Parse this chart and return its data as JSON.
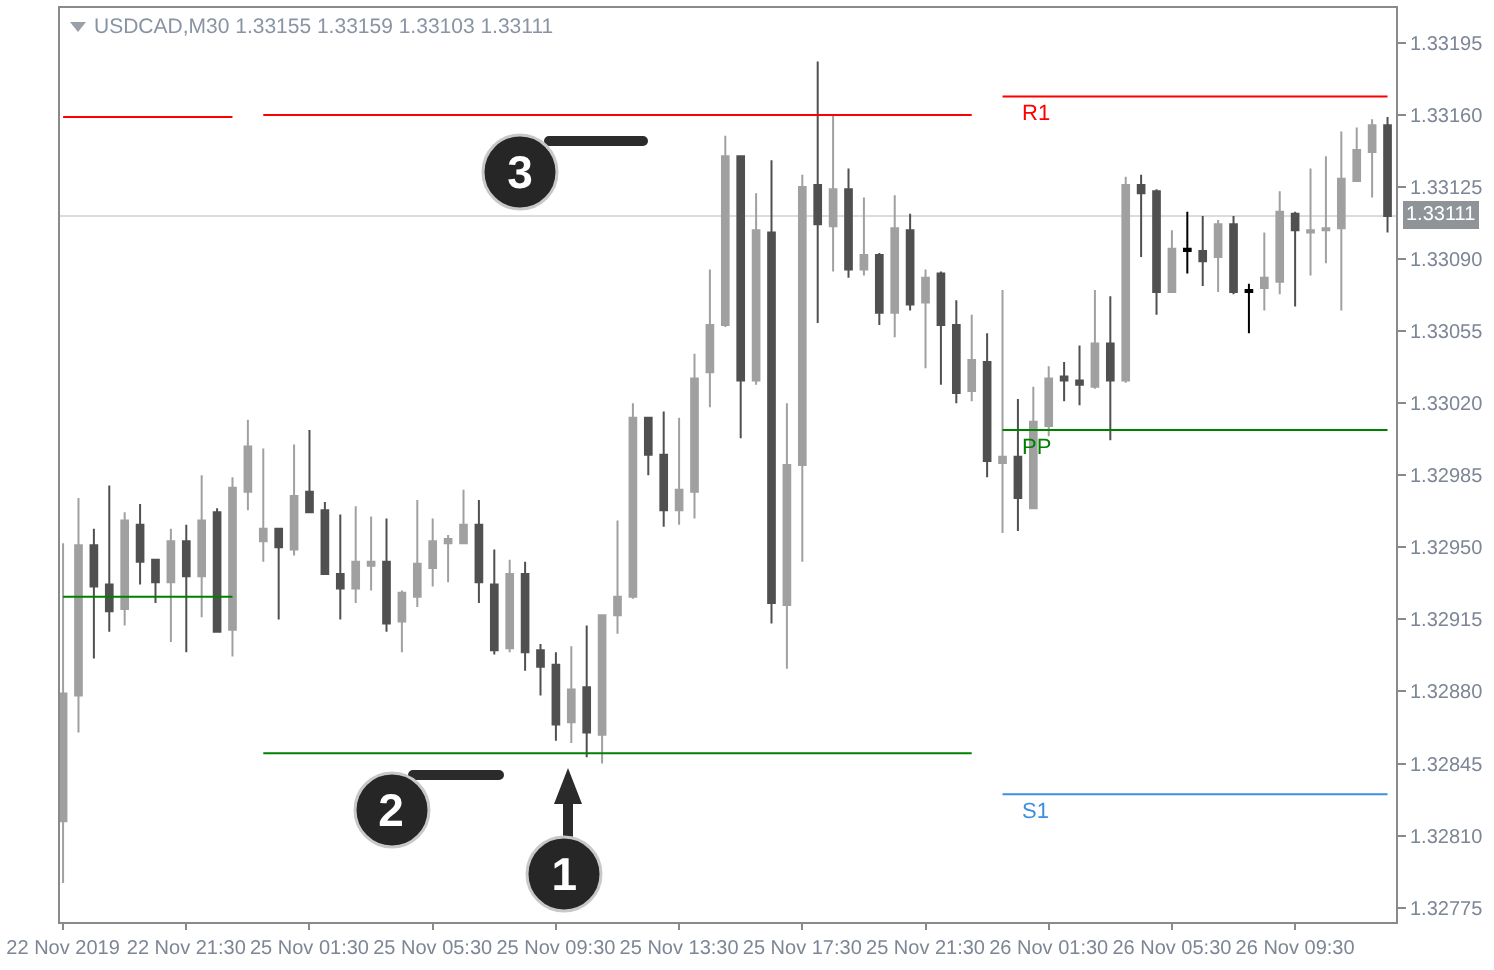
{
  "chart_data": {
    "type": "candlestick",
    "title": "USDCAD,M30 1.33155 1.33159 1.33103 1.33111",
    "categories": [
      "22 Nov 2019",
      null,
      null,
      null,
      null,
      null,
      null,
      null,
      "22 Nov 21:30",
      null,
      null,
      null,
      null,
      null,
      null,
      null,
      "25 Nov 01:30",
      null,
      null,
      null,
      null,
      null,
      null,
      null,
      "25 Nov 05:30",
      null,
      null,
      null,
      null,
      null,
      null,
      null,
      "25 Nov 09:30",
      null,
      null,
      null,
      null,
      null,
      null,
      null,
      "25 Nov 13:30",
      null,
      null,
      null,
      null,
      null,
      null,
      null,
      "25 Nov 17:30",
      null,
      null,
      null,
      null,
      null,
      null,
      null,
      "25 Nov 21:30",
      null,
      null,
      null,
      null,
      null,
      null,
      null,
      "26 Nov 01:30",
      null,
      null,
      null,
      null,
      null,
      null,
      null,
      "26 Nov 05:30",
      null,
      null,
      null,
      null,
      null,
      null,
      null,
      "26 Nov 09:30",
      null,
      null,
      null,
      null,
      null,
      null
    ],
    "ohlc": [
      [
        1.32817,
        1.32952,
        1.32787,
        1.32879
      ],
      [
        1.32878,
        1.32974,
        1.3286,
        1.32951
      ],
      [
        1.32951,
        1.32959,
        1.32896,
        1.32931
      ],
      [
        1.32932,
        1.3298,
        1.32909,
        1.32919
      ],
      [
        1.3292,
        1.32967,
        1.32912,
        1.32963
      ],
      [
        1.32961,
        1.32971,
        1.32932,
        1.32943
      ],
      [
        1.32944,
        1.32944,
        1.32923,
        1.32933
      ],
      [
        1.32933,
        1.32959,
        1.32904,
        1.32953
      ],
      [
        1.32953,
        1.32961,
        1.32899,
        1.32936
      ],
      [
        1.32936,
        1.32985,
        1.32916,
        1.32963
      ],
      [
        1.32967,
        1.32969,
        1.32909,
        1.32909
      ],
      [
        1.3291,
        1.32984,
        1.32897,
        1.32979
      ],
      [
        1.32977,
        1.33012,
        1.32968,
        1.32999
      ],
      [
        1.32953,
        1.32998,
        1.32943,
        1.32959
      ],
      [
        1.32959,
        1.32959,
        1.32915,
        1.3295
      ],
      [
        1.32949,
        1.33,
        1.32946,
        1.32975
      ],
      [
        1.32977,
        1.33007,
        1.32967,
        1.32967
      ],
      [
        1.32968,
        1.32972,
        1.32937,
        1.32937
      ],
      [
        1.32937,
        1.32966,
        1.32915,
        1.3293
      ],
      [
        1.3293,
        1.3297,
        1.32923,
        1.32943
      ],
      [
        1.32941,
        1.32965,
        1.32929,
        1.32943
      ],
      [
        1.32943,
        1.32964,
        1.32909,
        1.32913
      ],
      [
        1.32914,
        1.32929,
        1.32899,
        1.32928
      ],
      [
        1.32926,
        1.32973,
        1.32921,
        1.32942
      ],
      [
        1.3294,
        1.32964,
        1.32931,
        1.32953
      ],
      [
        1.32952,
        1.32956,
        1.32933,
        1.32954
      ],
      [
        1.32952,
        1.32978,
        1.32952,
        1.32961
      ],
      [
        1.32961,
        1.32973,
        1.32923,
        1.32933
      ],
      [
        1.32932,
        1.32949,
        1.32898,
        1.329
      ],
      [
        1.32901,
        1.32944,
        1.32899,
        1.32937
      ],
      [
        1.32937,
        1.32943,
        1.3289,
        1.32899
      ],
      [
        1.329,
        1.32903,
        1.32878,
        1.32892
      ],
      [
        1.32893,
        1.32899,
        1.32856,
        1.32864
      ],
      [
        1.32865,
        1.32902,
        1.32855,
        1.32881
      ],
      [
        1.32882,
        1.32912,
        1.32848,
        1.3286
      ],
      [
        1.32859,
        1.32917,
        1.32845,
        1.32917
      ],
      [
        1.32917,
        1.32963,
        1.32908,
        1.32926
      ],
      [
        1.32926,
        1.3302,
        1.32925,
        1.33013
      ],
      [
        1.33013,
        1.33013,
        1.32985,
        1.32995
      ],
      [
        1.32995,
        1.33016,
        1.3296,
        1.32968
      ],
      [
        1.32968,
        1.33013,
        1.32961,
        1.32978
      ],
      [
        1.32977,
        1.33044,
        1.32964,
        1.33032
      ],
      [
        1.33035,
        1.33085,
        1.33018,
        1.33058
      ],
      [
        1.33058,
        1.3315,
        1.33057,
        1.3314
      ],
      [
        1.3314,
        1.3314,
        1.33003,
        1.33031
      ],
      [
        1.33031,
        1.33122,
        1.33029,
        1.33104
      ],
      [
        1.33103,
        1.33138,
        1.32913,
        1.32923
      ],
      [
        1.32922,
        1.3302,
        1.32891,
        1.3299
      ],
      [
        1.3299,
        1.33131,
        1.32943,
        1.33125
      ],
      [
        1.33126,
        1.33186,
        1.33059,
        1.33107
      ],
      [
        1.33106,
        1.3316,
        1.33084,
        1.33124
      ],
      [
        1.33124,
        1.33134,
        1.33081,
        1.33085
      ],
      [
        1.33085,
        1.3312,
        1.33082,
        1.33092
      ],
      [
        1.33092,
        1.33093,
        1.33058,
        1.33064
      ],
      [
        1.33064,
        1.33121,
        1.33052,
        1.33105
      ],
      [
        1.33104,
        1.33112,
        1.33065,
        1.33068
      ],
      [
        1.33069,
        1.33085,
        1.33037,
        1.33081
      ],
      [
        1.33083,
        1.33084,
        1.33029,
        1.33058
      ],
      [
        1.33058,
        1.3307,
        1.3302,
        1.33025
      ],
      [
        1.33026,
        1.33063,
        1.33021,
        1.33041
      ],
      [
        1.3304,
        1.33054,
        1.32984,
        1.32992
      ],
      [
        1.32991,
        1.33075,
        1.32957,
        1.32994
      ],
      [
        1.32994,
        1.33022,
        1.32958,
        1.32974
      ],
      [
        1.32969,
        1.33028,
        1.32969,
        1.33011
      ],
      [
        1.33009,
        1.33038,
        1.33004,
        1.33032
      ],
      [
        1.33033,
        1.3304,
        1.33021,
        1.33031
      ],
      [
        1.33031,
        1.33048,
        1.33019,
        1.33029
      ],
      [
        1.33028,
        1.33075,
        1.33027,
        1.33049
      ],
      [
        1.33049,
        1.33072,
        1.33002,
        1.33031
      ],
      [
        1.33031,
        1.3313,
        1.3303,
        1.33126
      ],
      [
        1.33126,
        1.33131,
        1.33091,
        1.33122
      ],
      [
        1.33123,
        1.33124,
        1.33063,
        1.33074
      ],
      [
        1.33074,
        1.33104,
        1.33074,
        1.33095
      ],
      [
        1.33095,
        1.33113,
        1.33083,
        1.33094
      ],
      [
        1.33094,
        1.33111,
        1.33077,
        1.33089
      ],
      [
        1.33091,
        1.33109,
        1.33074,
        1.33107
      ],
      [
        1.33107,
        1.33111,
        1.33073,
        1.33074
      ],
      [
        1.33075,
        1.33078,
        1.33054,
        1.33074
      ],
      [
        1.33076,
        1.33103,
        1.33065,
        1.33081
      ],
      [
        1.33079,
        1.33123,
        1.33073,
        1.33113
      ],
      [
        1.33112,
        1.33113,
        1.33067,
        1.33104
      ],
      [
        1.33103,
        1.33134,
        1.33082,
        1.33104
      ],
      [
        1.33104,
        1.3314,
        1.33088,
        1.33105
      ],
      [
        1.33105,
        1.33152,
        1.33065,
        1.33129
      ],
      [
        1.33128,
        1.33154,
        1.33128,
        1.33143
      ],
      [
        1.33142,
        1.33158,
        1.3312,
        1.33155
      ],
      [
        1.33155,
        1.33159,
        1.33103,
        1.33111
      ]
    ],
    "colors": [
      "#a0a0a0",
      "#a0a0a0",
      "#505050",
      "#505050",
      "#a0a0a0",
      "#505050",
      "#505050",
      "#a0a0a0",
      "#505050",
      "#a0a0a0",
      "#505050",
      "#a0a0a0",
      "#a0a0a0",
      "#a0a0a0",
      "#505050",
      "#a0a0a0",
      "#505050",
      "#505050",
      "#505050",
      "#a0a0a0",
      "#a0a0a0",
      "#505050",
      "#a0a0a0",
      "#a0a0a0",
      "#a0a0a0",
      "#a0a0a0",
      "#a0a0a0",
      "#505050",
      "#505050",
      "#a0a0a0",
      "#505050",
      "#505050",
      "#505050",
      "#a0a0a0",
      "#505050",
      "#a0a0a0",
      "#a0a0a0",
      "#a0a0a0",
      "#505050",
      "#505050",
      "#a0a0a0",
      "#a0a0a0",
      "#a0a0a0",
      "#a0a0a0",
      "#505050",
      "#a0a0a0",
      "#505050",
      "#a0a0a0",
      "#a0a0a0",
      "#505050",
      "#a0a0a0",
      "#505050",
      "#a0a0a0",
      "#505050",
      "#a0a0a0",
      "#505050",
      "#a0a0a0",
      "#505050",
      "#505050",
      "#a0a0a0",
      "#505050",
      "#a0a0a0",
      "#505050",
      "#a0a0a0",
      "#a0a0a0",
      "#505050",
      "#505050",
      "#a0a0a0",
      "#505050",
      "#a0a0a0",
      "#505050",
      "#505050",
      "#a0a0a0",
      "#000000",
      "#505050",
      "#a0a0a0",
      "#505050",
      "#000000",
      "#a0a0a0",
      "#a0a0a0",
      "#505050",
      "#a0a0a0",
      "#a0a0a0",
      "#a0a0a0",
      "#a0a0a0",
      "#a0a0a0",
      "#505050"
    ],
    "series": [
      {
        "type": "line",
        "name": "R1",
        "color": "#ff0000",
        "values": [
          1.33159,
          1.33159,
          1.33159,
          1.33159,
          1.33159,
          1.33159,
          1.33159,
          1.33159,
          1.33159,
          1.33159,
          1.33159,
          1.33159,
          null,
          1.3316,
          1.3316,
          1.3316,
          1.3316,
          1.3316,
          1.3316,
          1.3316,
          1.3316,
          1.3316,
          1.3316,
          1.3316,
          1.3316,
          1.3316,
          1.3316,
          1.3316,
          1.3316,
          1.3316,
          1.3316,
          1.3316,
          1.3316,
          1.3316,
          1.3316,
          1.3316,
          1.3316,
          1.3316,
          1.3316,
          1.3316,
          1.3316,
          1.3316,
          1.3316,
          1.3316,
          1.3316,
          1.3316,
          1.3316,
          1.3316,
          1.3316,
          1.3316,
          1.3316,
          1.3316,
          1.3316,
          1.3316,
          1.3316,
          1.3316,
          1.3316,
          1.3316,
          1.3316,
          1.3316,
          null,
          1.33169,
          1.33169,
          1.33169,
          1.33169,
          1.33169,
          1.33169,
          1.33169,
          1.33169,
          1.33169,
          1.33169,
          1.33169,
          1.33169,
          1.33169,
          1.33169,
          1.33169,
          1.33169,
          1.33169,
          1.33169,
          1.33169,
          1.33169,
          1.33169,
          1.33169,
          1.33169,
          1.33169,
          1.33169,
          1.33169
        ]
      },
      {
        "type": "line",
        "name": "PP",
        "color": "#008000",
        "values": [
          1.32926,
          1.32926,
          1.32926,
          1.32926,
          1.32926,
          1.32926,
          1.32926,
          1.32926,
          1.32926,
          1.32926,
          1.32926,
          1.32926,
          null,
          1.3285,
          1.3285,
          1.3285,
          1.3285,
          1.3285,
          1.3285,
          1.3285,
          1.3285,
          1.3285,
          1.3285,
          1.3285,
          1.3285,
          1.3285,
          1.3285,
          1.3285,
          1.3285,
          1.3285,
          1.3285,
          1.3285,
          1.3285,
          1.3285,
          1.3285,
          1.3285,
          1.3285,
          1.3285,
          1.3285,
          1.3285,
          1.3285,
          1.3285,
          1.3285,
          1.3285,
          1.3285,
          1.3285,
          1.3285,
          1.3285,
          1.3285,
          1.3285,
          1.3285,
          1.3285,
          1.3285,
          1.3285,
          1.3285,
          1.3285,
          1.3285,
          1.3285,
          1.3285,
          1.3285,
          null,
          1.33007,
          1.33007,
          1.33007,
          1.33007,
          1.33007,
          1.33007,
          1.33007,
          1.33007,
          1.33007,
          1.33007,
          1.33007,
          1.33007,
          1.33007,
          1.33007,
          1.33007,
          1.33007,
          1.33007,
          1.33007,
          1.33007,
          1.33007,
          1.33007,
          1.33007,
          1.33007,
          1.33007,
          1.33007,
          1.33007
        ]
      },
      {
        "type": "line",
        "name": "S1",
        "color": "#3d8fe0",
        "values": [
          null,
          null,
          null,
          null,
          null,
          null,
          null,
          null,
          null,
          null,
          null,
          null,
          null,
          null,
          null,
          null,
          null,
          null,
          null,
          null,
          null,
          null,
          null,
          null,
          null,
          null,
          null,
          null,
          null,
          null,
          null,
          null,
          null,
          null,
          null,
          null,
          null,
          null,
          null,
          null,
          null,
          null,
          null,
          null,
          null,
          null,
          null,
          null,
          null,
          null,
          null,
          null,
          null,
          null,
          null,
          null,
          null,
          null,
          null,
          null,
          null,
          1.3283,
          1.3283,
          1.3283,
          1.3283,
          1.3283,
          1.3283,
          1.3283,
          1.3283,
          1.3283,
          1.3283,
          1.3283,
          1.3283,
          1.3283,
          1.3283,
          1.3283,
          1.3283,
          1.3283,
          1.3283,
          1.3283,
          1.3283,
          1.3283,
          1.3283,
          1.3283,
          1.3283,
          1.3283,
          1.3283
        ]
      }
    ],
    "ref_lines": [
      {
        "axis": "y",
        "value": 1.33111,
        "label": "1.33111",
        "color": "#dcdcdc"
      }
    ],
    "ylim": [
      1.32768,
      1.33212
    ],
    "yticks": [
      1.33195,
      {
        "value": 1.3316,
        "label": "1.33160"
      },
      1.33125,
      {
        "value": 1.3309,
        "label": "1.33090"
      },
      1.33055,
      {
        "value": 1.3302,
        "label": "1.33020"
      },
      1.32985,
      {
        "value": 1.3295,
        "label": "1.32950"
      },
      1.32915,
      {
        "value": 1.3288,
        "label": "1.32880"
      },
      1.32845,
      {
        "value": 1.3281,
        "label": "1.32810"
      },
      1.32775
    ],
    "annotations": [
      "1",
      "2",
      "3"
    ]
  }
}
